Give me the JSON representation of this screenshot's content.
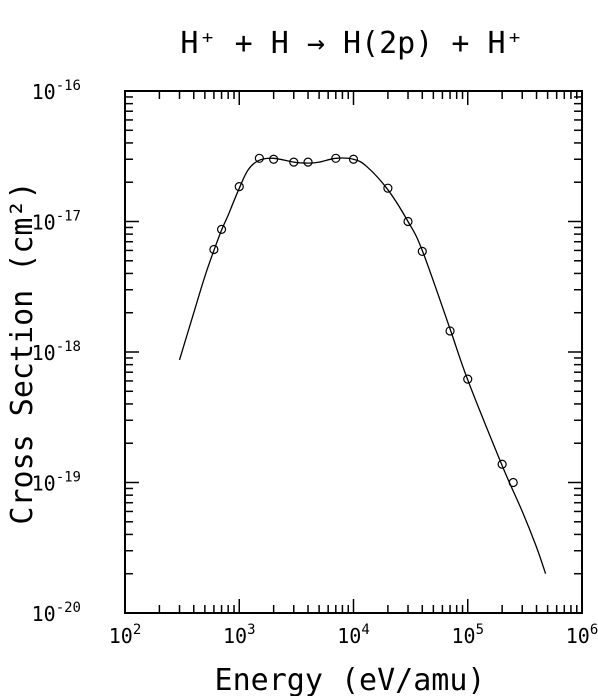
{
  "chart_data": {
    "type": "scatter",
    "title": "H⁺ + H → H(2p) + H⁺",
    "xlabel": "Energy (eV/amu)",
    "ylabel": "Cross Section (cm²)",
    "xscale": "log",
    "yscale": "log",
    "xlim": [
      100,
      1000000
    ],
    "ylim": [
      1e-20,
      1e-16
    ],
    "x_ticks": [
      {
        "value": 100,
        "base": "10",
        "exp": "2"
      },
      {
        "value": 1000,
        "base": "10",
        "exp": "3"
      },
      {
        "value": 10000,
        "base": "10",
        "exp": "4"
      },
      {
        "value": 100000,
        "base": "10",
        "exp": "5"
      },
      {
        "value": 1000000,
        "base": "10",
        "exp": "6"
      }
    ],
    "y_ticks": [
      {
        "value": 1e-20,
        "base": "10",
        "exp": "-20"
      },
      {
        "value": 1e-19,
        "base": "10",
        "exp": "-19"
      },
      {
        "value": 1e-18,
        "base": "10",
        "exp": "-18"
      },
      {
        "value": 1e-17,
        "base": "10",
        "exp": "-17"
      },
      {
        "value": 1e-16,
        "base": "10",
        "exp": "-16"
      }
    ],
    "grid": false,
    "series": [
      {
        "kind": "points",
        "marker": "open-circle",
        "x": [
          600,
          700,
          1000,
          1500,
          2000,
          3000,
          4000,
          7000,
          10000,
          20000,
          30000,
          40000,
          70000,
          100000,
          200000,
          250000
        ],
        "y": [
          6.1e-18,
          8.7e-18,
          1.85e-17,
          3.05e-17,
          3e-17,
          2.85e-17,
          2.85e-17,
          3.05e-17,
          3e-17,
          1.8e-17,
          1e-17,
          5.9e-18,
          1.45e-18,
          6.2e-19,
          1.38e-19,
          1e-19
        ]
      },
      {
        "kind": "line",
        "x": [
          300,
          400,
          500,
          600,
          700,
          800,
          1000,
          1200,
          1500,
          2000,
          3000,
          4000,
          5000,
          7000,
          10000,
          13000,
          20000,
          30000,
          40000,
          70000,
          100000,
          200000,
          300000,
          400000,
          480000
        ],
        "y": [
          8.7e-19,
          2e-18,
          3.8e-18,
          6e-18,
          8.6e-18,
          1.12e-17,
          1.8e-17,
          2.5e-17,
          2.95e-17,
          3.05e-17,
          2.85e-17,
          2.8e-17,
          2.85e-17,
          3.05e-17,
          3e-17,
          2.65e-17,
          1.75e-17,
          1e-17,
          6e-18,
          1.5e-18,
          6.1e-19,
          1.35e-19,
          6e-20,
          3.2e-20,
          2e-20
        ]
      }
    ]
  }
}
